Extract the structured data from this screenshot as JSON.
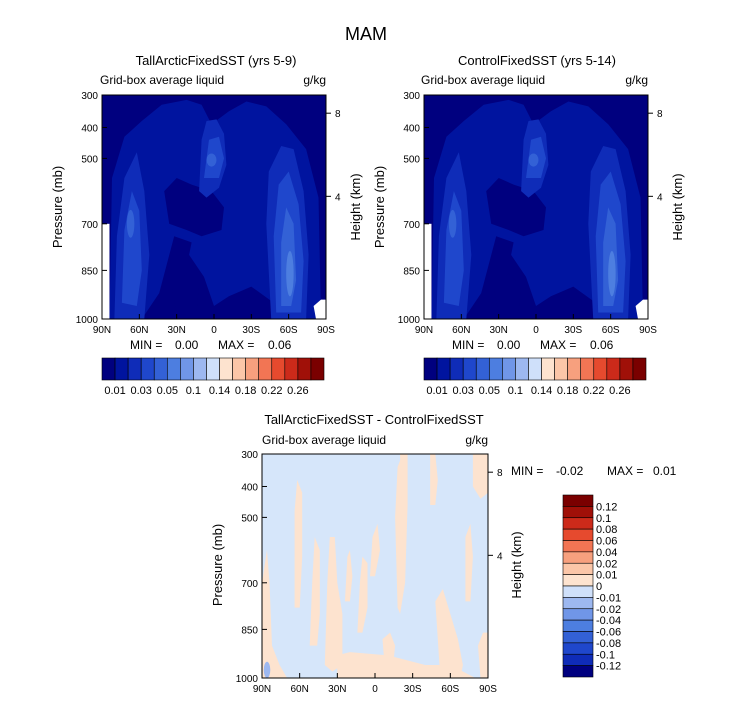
{
  "title": "MAM",
  "chart_data": [
    {
      "type": "heatmap",
      "title": "TallArcticFixedSST (yrs 5-9)",
      "subtitle_left": "Grid-box average liquid",
      "units": "g/kg",
      "ylabel": "Pressure (mb)",
      "ylabel_right": "Height (km)",
      "x_ticks": [
        "90N",
        "60N",
        "30N",
        "0",
        "30S",
        "60S",
        "90S"
      ],
      "y_ticks": [
        "300",
        "400",
        "500",
        "700",
        "850",
        "1000"
      ],
      "y_right_ticks": [
        "8",
        "4"
      ],
      "stats": {
        "min_label": "MIN =",
        "min": "0.00",
        "max_label": "MAX =",
        "max": "0.06"
      },
      "colorbar_labels": [
        "0.01",
        "0.03",
        "0.05",
        "0.1",
        "0.14",
        "0.18",
        "0.22",
        "0.26"
      ]
    },
    {
      "type": "heatmap",
      "title": "ControlFixedSST (yrs 5-14)",
      "subtitle_left": "Grid-box average liquid",
      "units": "g/kg",
      "ylabel": "Pressure (mb)",
      "ylabel_right": "Height (km)",
      "x_ticks": [
        "90N",
        "60N",
        "30N",
        "0",
        "30S",
        "60S",
        "90S"
      ],
      "y_ticks": [
        "300",
        "400",
        "500",
        "700",
        "850",
        "1000"
      ],
      "y_right_ticks": [
        "8",
        "4"
      ],
      "stats": {
        "min_label": "MIN =",
        "min": "0.00",
        "max_label": "MAX =",
        "max": "0.06"
      },
      "colorbar_labels": [
        "0.01",
        "0.03",
        "0.05",
        "0.1",
        "0.14",
        "0.18",
        "0.22",
        "0.26"
      ]
    },
    {
      "type": "heatmap",
      "title": "TallArcticFixedSST - ControlFixedSST",
      "subtitle_left": "Grid-box average liquid",
      "units": "g/kg",
      "ylabel": "Pressure (mb)",
      "ylabel_right": "Height (km)",
      "x_ticks": [
        "90N",
        "60N",
        "30N",
        "0",
        "30S",
        "60S",
        "90S"
      ],
      "y_ticks": [
        "300",
        "400",
        "500",
        "700",
        "850",
        "1000"
      ],
      "y_right_ticks": [
        "8",
        "4"
      ],
      "stats": {
        "min_label": "MIN =",
        "min": "-0.02",
        "max_label": "MAX =",
        "max": "0.01"
      },
      "colorbar_labels": [
        "0.12",
        "0.1",
        "0.08",
        "0.06",
        "0.04",
        "0.02",
        "0.01",
        "0",
        "-0.01",
        "-0.02",
        "-0.04",
        "-0.06",
        "-0.08",
        "-0.1",
        "-0.12"
      ]
    }
  ],
  "colors": {
    "seq_levels": [
      "#00007f",
      "#00149f",
      "#0f2cb8",
      "#1f47cc",
      "#3361d6",
      "#4d7ee0",
      "#7096e8",
      "#9db8f0",
      "#cfe0fa",
      "#fde3cf",
      "#fbc6a8",
      "#f7a07e",
      "#f27554",
      "#e64a2e",
      "#cc2a1a",
      "#a01008",
      "#7a0000"
    ],
    "diff_levels": [
      "#7a0000",
      "#a01008",
      "#cc2a1a",
      "#e64a2e",
      "#f27554",
      "#f7a07e",
      "#fbc6a8",
      "#fde3cf",
      "#cfe0fa",
      "#9db8f0",
      "#7096e8",
      "#4d7ee0",
      "#3361d6",
      "#1f47cc",
      "#0f2cb8",
      "#00007f"
    ],
    "diff_background": "#d6e6fa",
    "diff_positive": "#fde3cf",
    "diff_negative_strong": "#9db8f0"
  }
}
